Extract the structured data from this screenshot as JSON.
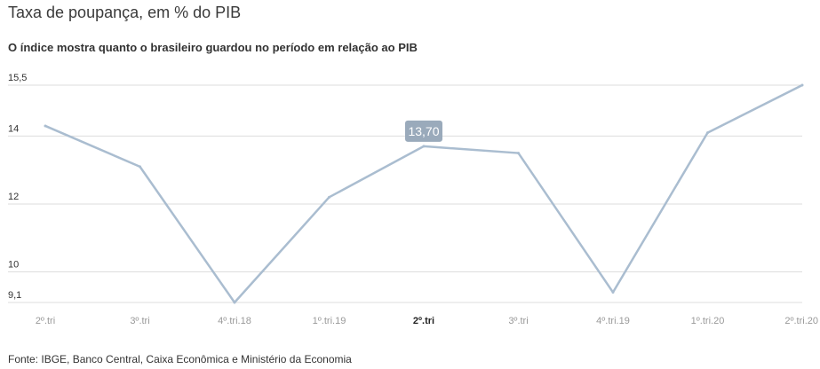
{
  "header": {
    "title": "Taxa de poupança, em % do PIB",
    "subtitle": "O índice mostra quanto o brasileiro guardou no período em relação ao PIB"
  },
  "footer": {
    "source": "Fonte: IBGE, Banco Central, Caixa Econômica e Ministério da Economia"
  },
  "chart_data": {
    "type": "line",
    "title": "Taxa de poupança, em % do PIB",
    "subtitle": "O índice mostra quanto o brasileiro guardou no período em relação ao PIB",
    "categories": [
      "2º.tri",
      "3º.tri",
      "4º.tri.18",
      "1º.tri.19",
      "2º.tri",
      "3º.tri",
      "4º.tri.19",
      "1º.tri.20",
      "2º.tri.20"
    ],
    "series": [
      {
        "values": [
          14.3,
          13.1,
          9.1,
          12.2,
          13.7,
          13.5,
          9.4,
          14.1,
          15.5
        ],
        "color": "#aabdd0"
      }
    ],
    "y_ticks": [
      {
        "value": 15.5,
        "label": "15,5"
      },
      {
        "value": 14,
        "label": "14"
      },
      {
        "value": 12,
        "label": "12"
      },
      {
        "value": 10,
        "label": "10"
      },
      {
        "value": 9.1,
        "label": "9,1"
      }
    ],
    "ylim": [
      9.1,
      15.5
    ],
    "grid": true,
    "highlight": {
      "index": 4,
      "label": "13,70",
      "color": "#9aaabb"
    },
    "xlabel": "",
    "ylabel": ""
  }
}
